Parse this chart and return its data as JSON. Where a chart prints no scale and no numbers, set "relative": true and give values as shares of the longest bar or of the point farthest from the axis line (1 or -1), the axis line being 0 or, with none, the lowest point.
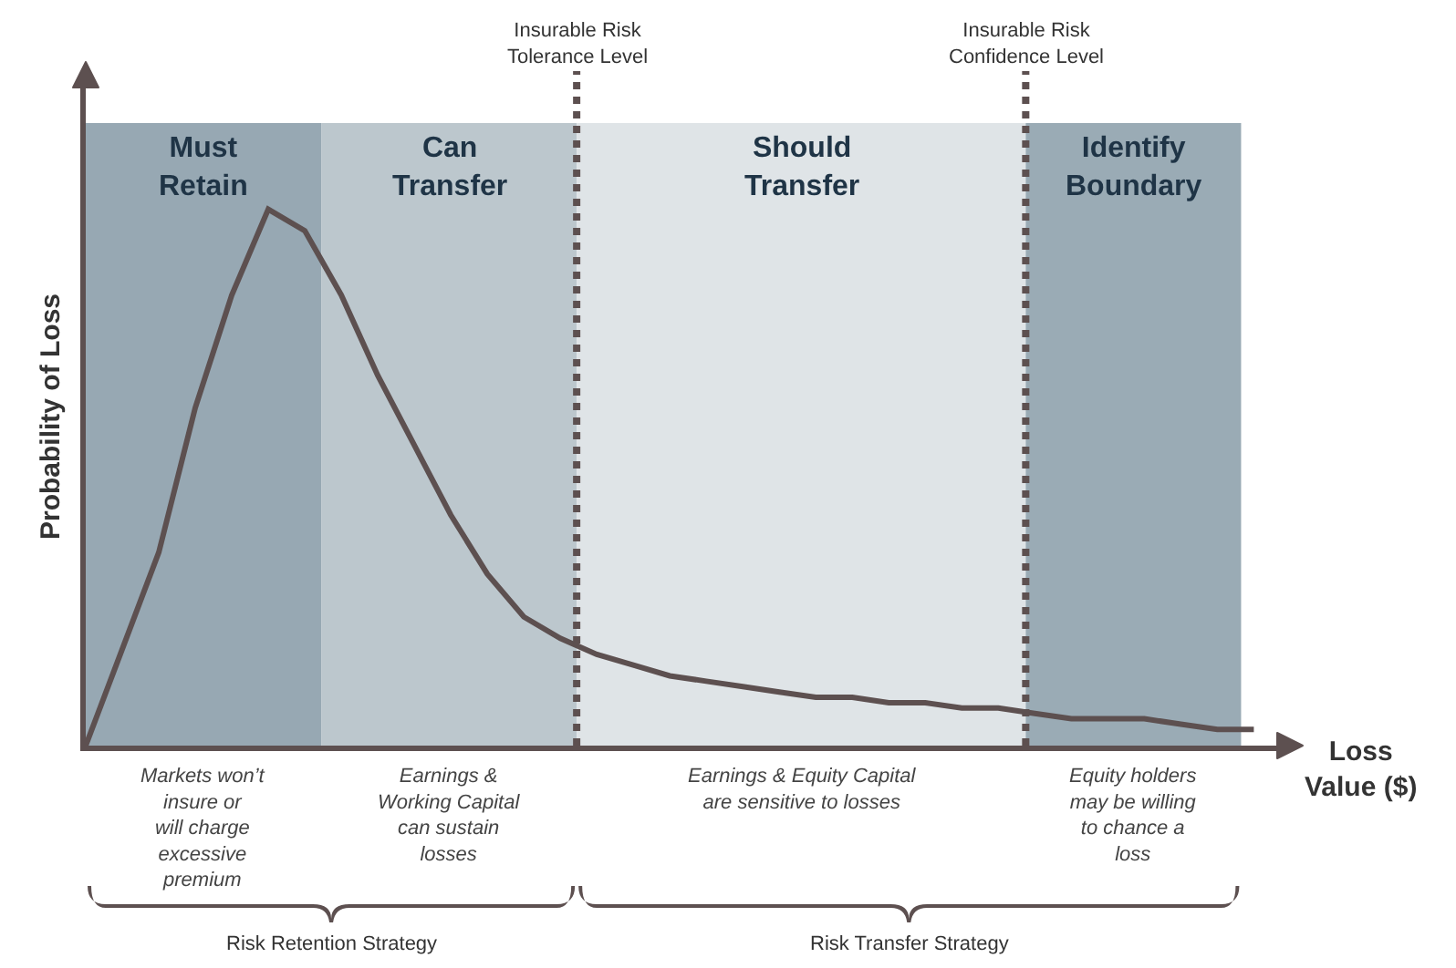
{
  "chart_data": {
    "type": "line",
    "relative": true,
    "marker": "none",
    "line_style": "solid",
    "ylabel": "Probability of Loss",
    "xlabel": "Loss\nValue ($)",
    "categories": [
      null,
      null,
      null,
      null,
      null,
      null,
      null,
      null,
      null,
      null,
      null,
      null,
      null,
      null,
      null,
      null,
      null,
      null,
      null,
      null,
      null,
      null,
      null,
      null,
      null,
      null,
      null,
      null,
      null,
      null,
      null,
      null,
      null
    ],
    "values": [
      0,
      0.18,
      0.36,
      0.63,
      0.84,
      1,
      0.96,
      0.84,
      0.69,
      0.56,
      0.43,
      0.32,
      0.24,
      0.2,
      0.17,
      0.15,
      0.13,
      0.12,
      0.11,
      0.1,
      0.09,
      0.09,
      0.08,
      0.08,
      0.07,
      0.07,
      0.06,
      0.05,
      0.05,
      0.05,
      0.04,
      0.03,
      0.03
    ],
    "color": "#5d5050",
    "annotations": [
      "Must\nRetain",
      "Can\nTransfer",
      "Should\nTransfer",
      "Identify\nBoundary",
      "Insurable Risk\nTolerance Level",
      "Insurable Risk\nConfidence Level",
      "Markets won’t\ninsure or\nwill charge\nexcessive\npremium",
      "Earnings &\nWorking Capital\ncan sustain\nlosses",
      "Earnings & Equity Capital\nare sensitive to losses",
      "Equity holders\nmay be willing\nto chance a\nloss",
      "Risk Retention Strategy",
      "Risk Transfer Strategy"
    ]
  }
}
